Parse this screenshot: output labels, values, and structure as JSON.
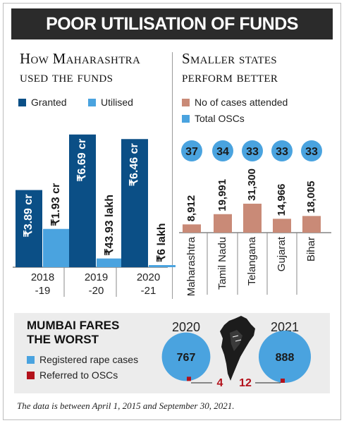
{
  "header": {
    "title": "POOR UTILISATION OF FUNDS"
  },
  "left_section": {
    "title_line1": "How Maharashtra",
    "title_line2": "used the funds",
    "legend": [
      {
        "label": "Granted",
        "color": "#0b4f86"
      },
      {
        "label": "Utilised",
        "color": "#4aa3df"
      }
    ]
  },
  "right_section": {
    "title_line1": "Smaller states",
    "title_line2": "perform better",
    "legend": [
      {
        "label": "No of cases attended",
        "color": "#c98a77"
      },
      {
        "label": "Total OSCs",
        "color": "#4aa3df"
      }
    ]
  },
  "chart_data": [
    {
      "type": "bar",
      "title": "How Maharashtra used the funds",
      "categories": [
        "2018 -19",
        "2019 -20",
        "2020 -21"
      ],
      "category_lines": [
        [
          "2018",
          "-19"
        ],
        [
          "2019",
          "-20"
        ],
        [
          "2020",
          "-21"
        ]
      ],
      "unit": "₹ crore",
      "series": [
        {
          "name": "Granted",
          "color": "#0b4f86",
          "values": [
            3.89,
            6.69,
            6.46
          ],
          "labels": [
            "₹3.89 cr",
            "₹6.69 cr",
            "₹6.46 cr"
          ]
        },
        {
          "name": "Utilised",
          "color": "#4aa3df",
          "values": [
            1.93,
            0.4393,
            0.06
          ],
          "labels": [
            "₹1.93 cr",
            "₹43.93 lakh",
            "₹6 lakh"
          ]
        }
      ],
      "ylim": [
        0,
        7.5
      ],
      "legend_position": "top-left"
    },
    {
      "type": "bar",
      "title": "Smaller states perform better",
      "categories": [
        "Maharashtra",
        "Tamil Nadu",
        "Telangana",
        "Gujarat",
        "Bihar"
      ],
      "series": [
        {
          "name": "No of cases attended",
          "color": "#c98a77",
          "values": [
            8912,
            19991,
            31300,
            14966,
            18005
          ],
          "labels": [
            "8,912",
            "19,991",
            "31,300",
            "14,966",
            "18,005"
          ]
        },
        {
          "name": "Total OSCs",
          "color": "#4aa3df",
          "values": [
            37,
            34,
            33,
            33,
            33
          ],
          "labels": [
            "37",
            "34",
            "33",
            "33",
            "33"
          ]
        }
      ],
      "ylim": [
        0,
        32000
      ],
      "legend_position": "top-left"
    },
    {
      "type": "bubble",
      "title": "Mumbai fares the worst",
      "categories": [
        "2020",
        "2021"
      ],
      "series": [
        {
          "name": "Registered rape cases",
          "color": "#4aa3df",
          "values": [
            767,
            888
          ],
          "labels": [
            "767",
            "888"
          ]
        },
        {
          "name": "Referred to OSCs",
          "color": "#b3121c",
          "values": [
            4,
            12
          ],
          "labels": [
            "4",
            "12"
          ]
        }
      ]
    }
  ],
  "mumbai": {
    "title_line1": "MUMBAI FARES",
    "title_line2": "THE WORST",
    "legend": [
      {
        "label": "Registered rape cases",
        "color": "#4aa3df"
      },
      {
        "label": "Referred to OSCs",
        "color": "#b3121c"
      }
    ],
    "map_icon": "mumbai-map-icon"
  },
  "footnote": "The data is between April 1, 2015 and September 30, 2021."
}
